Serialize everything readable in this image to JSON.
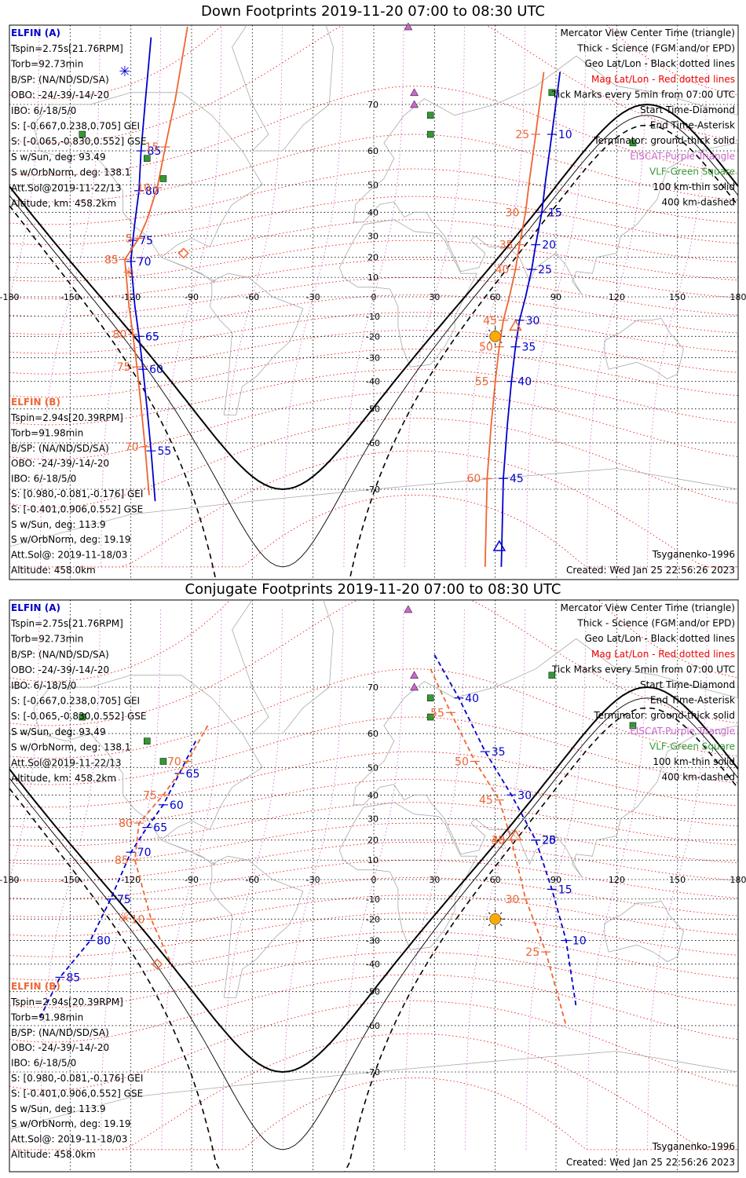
{
  "colors": {
    "elfin_a": "#0000cc",
    "elfin_b": "#ee6633",
    "mag_grid": "#ee0000",
    "geo_grid": "#000000",
    "eiscat": "#cc66cc",
    "vlf": "#339933",
    "sun": "#ffaa00",
    "coast": "#aaaaaa"
  },
  "panels": [
    {
      "title": "Down Footprints 2019-11-20 07:00 to 08:30 UTC",
      "info_a": {
        "header": "ELFIN (A)",
        "lines": [
          "Tspin=2.75s[21.76RPM]",
          "Torb=92.73min",
          "B/SP: (NA/ND/SD/SA)",
          "OBO: -24/-39/-14/-20",
          "IBO: 6/-18/5/0",
          "S: [-0.667,0.238,0.705] GEI",
          "S: [-0.065,-0.830,0.552] GSE",
          "S w/Sun, deg: 93.49",
          "S w/OrbNorm, deg: 138.1",
          "Att.Sol@2019-11-22/13",
          "Altitude, km: 458.2km"
        ]
      },
      "info_b": {
        "header": "ELFIN (B)",
        "lines": [
          "Tspin=2.94s[20.39RPM]",
          "Torb=91.98min",
          "B/SP: (NA/ND/SD/SA)",
          "OBO: -24/-39/-14/-20",
          "IBO: 6/-18/5/0",
          "S: [0.980,-0.081,-0.176] GEI",
          "S: [-0.401,0.906,0.552] GSE",
          "S w/Sun, deg: 113.9",
          "S w/OrbNorm, deg: 19.19",
          "Att.Sol@: 2019-11-18/03",
          "Altitude: 458.0km"
        ]
      },
      "legend": [
        "Mercator View Center Time (triangle)",
        "Thick - Science (FGM and/or EPD)",
        "Geo Lat/Lon - Black dotted lines",
        "Mag Lat/Lon - Red dotted lines",
        "Tick Marks every 5min from 07:00 UTC",
        "Start Time-Diamond",
        "End Time-Asterisk",
        "Terminator: ground-thick solid",
        "EISCAT-Purple Triangle",
        "VLF-Green Square",
        "100 km-thin solid",
        "400 km-dashed"
      ],
      "footer_left": "",
      "footer_model": "Tsyganenko-1996",
      "footer_created": "Created: Wed Jan 25 22:56:26 2023"
    },
    {
      "title": "Conjugate Footprints 2019-11-20 07:00 to 08:30 UTC",
      "info_a": {
        "header": "ELFIN (A)",
        "lines": [
          "Tspin=2.75s[21.76RPM]",
          "Torb=92.73min",
          "B/SP: (NA/ND/SD/SA)",
          "OBO: -24/-39/-14/-20",
          "IBO: 6/-18/5/0",
          "S: [-0.667,0.238,0.705] GEI",
          "S: [-0.065,-0.830,0.552] GSE",
          "S w/Sun, deg: 93.49",
          "S w/OrbNorm, deg: 138.1",
          "Att.Sol@2019-11-22/13",
          "Altitude, km: 458.2km"
        ]
      },
      "info_b": {
        "header": "ELFIN (B)",
        "lines": [
          "Tspin=2.94s[20.39RPM]",
          "Torb=91.98min",
          "B/SP: (NA/ND/SD/SA)",
          "OBO: -24/-39/-14/-20",
          "IBO: 6/-18/5/0",
          "S: [0.980,-0.081,-0.176] GEI",
          "S: [-0.401,0.906,0.552] GSE",
          "S w/Sun, deg: 113.9",
          "S w/OrbNorm, deg: 19.19",
          "Att.Sol@: 2019-11-18/03",
          "Altitude: 458.0km"
        ]
      },
      "legend": [
        "Mercator View Center Time (triangle)",
        "Thick - Science (FGM and/or EPD)",
        "Geo Lat/Lon - Black dotted lines",
        "Mag Lat/Lon - Red dotted lines",
        "Tick Marks every 5min from 07:00 UTC",
        "Start Time-Diamond",
        "End Time-Asterisk",
        "Terminator: ground-thick solid",
        "EISCAT-Purple Triangle",
        "VLF-Green Square",
        "100 km-thin solid",
        "400 km-dashed"
      ],
      "footer_model": "Tsyganenko-1996",
      "footer_created": "Created: Wed Jan 25 22:56:26 2023"
    }
  ],
  "map": {
    "lon_labels": [
      "-180",
      "-150",
      "-120",
      "-90",
      "-60",
      "-30",
      "0",
      "30",
      "60",
      "90",
      "120",
      "150",
      "180"
    ],
    "lat_labels": [
      "70",
      "60",
      "50",
      "40",
      "30",
      "20",
      "10",
      "-10",
      "-20",
      "-30",
      "-40",
      "-50",
      "-60",
      "-70"
    ]
  },
  "tracks": {
    "down_a": {
      "lon": [
        -110,
        -113,
        -115,
        -116,
        -118,
        -119,
        -120,
        -118,
        -116,
        -114,
        -112,
        -110,
        -108
      ],
      "lat": [
        79,
        70,
        60,
        48,
        36,
        28,
        18,
        -5,
        -20,
        -35,
        -50,
        -62,
        -72
      ],
      "labels": [
        "85",
        "80",
        "75",
        "70",
        "65",
        "60",
        "55"
      ],
      "east_lon": [
        92,
        88,
        85,
        83,
        80,
        78,
        75,
        72,
        70,
        68,
        66,
        64,
        63
      ],
      "east_lat": [
        75,
        64,
        52,
        40,
        26,
        14,
        0,
        -12,
        -25,
        -40,
        -55,
        -68,
        -80
      ],
      "east_labels": [
        "10",
        "15",
        "20",
        "25",
        "30",
        "35",
        "40",
        "45"
      ]
    },
    "down_b": {
      "labels": [
        "15",
        "10",
        "5",
        "85",
        "80",
        "75",
        "70"
      ],
      "east_labels": [
        "25",
        "30",
        "35",
        "40",
        "45",
        "50",
        "55",
        "60"
      ]
    },
    "conj_a": {
      "labels": [
        "65",
        "60",
        "65",
        "70",
        "75",
        "80",
        "85"
      ],
      "east_labels": [
        "40",
        "35",
        "30",
        "25",
        "20",
        "15",
        "10"
      ]
    },
    "conj_b": {
      "labels": [
        "70",
        "75",
        "80",
        "85",
        "10"
      ],
      "east_labels": [
        "55",
        "50",
        "45",
        "40",
        "35",
        "30",
        "25"
      ]
    }
  },
  "stations": {
    "eiscat": [
      [
        17,
        80
      ],
      [
        20,
        72
      ],
      [
        20,
        70
      ]
    ],
    "vlf": [
      [
        -144,
        64
      ],
      [
        -112,
        58
      ],
      [
        -104,
        52
      ],
      [
        28,
        68
      ],
      [
        28,
        64
      ],
      [
        88,
        72
      ],
      [
        128,
        62
      ]
    ]
  },
  "sun": {
    "lon": 60,
    "lat": -20
  }
}
